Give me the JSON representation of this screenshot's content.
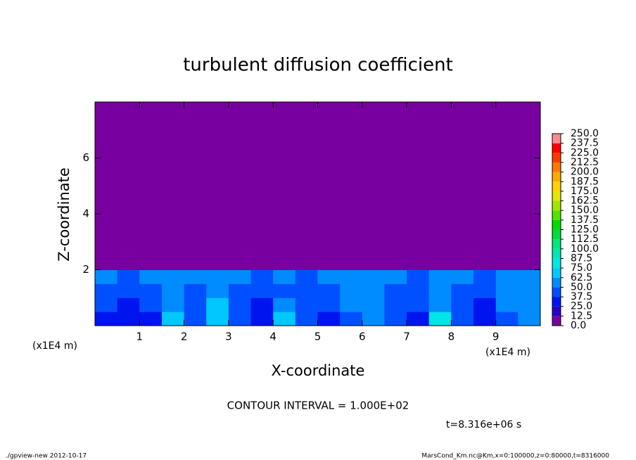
{
  "chart_data": {
    "type": "contour",
    "title": "turbulent diffusion coefficient",
    "xlabel": "X-coordinate",
    "ylabel": "Z-coordinate",
    "x_unit": "(x1E4 m)",
    "xlim": [
      0,
      10
    ],
    "xticks": [
      1,
      2,
      3,
      4,
      5,
      6,
      7,
      8,
      9
    ],
    "ylim": [
      0,
      8
    ],
    "yticks": [
      2,
      4,
      6
    ],
    "x_edges": [
      0,
      0.5,
      1,
      1.5,
      2,
      2.5,
      3,
      3.5,
      4,
      4.5,
      5,
      5.5,
      6,
      6.5,
      7,
      7.5,
      8,
      8.5,
      9,
      9.5,
      10
    ],
    "z_edges": [
      0,
      0.5,
      1,
      1.5,
      2,
      8
    ],
    "values": [
      [
        35,
        30,
        35,
        65,
        40,
        70,
        45,
        30,
        70,
        45,
        35,
        40,
        55,
        40,
        35,
        75,
        40,
        35,
        40,
        60
      ],
      [
        40,
        35,
        40,
        55,
        40,
        65,
        40,
        35,
        50,
        45,
        40,
        60,
        55,
        40,
        40,
        60,
        40,
        35,
        50,
        55
      ],
      [
        45,
        40,
        45,
        50,
        45,
        60,
        45,
        40,
        45,
        40,
        45,
        55,
        60,
        45,
        40,
        50,
        45,
        40,
        55,
        50
      ],
      [
        50,
        45,
        50,
        55,
        50,
        55,
        50,
        45,
        50,
        45,
        50,
        50,
        55,
        50,
        45,
        50,
        50,
        45,
        50,
        50
      ],
      [
        0,
        0,
        0,
        0,
        0,
        0,
        0,
        0,
        0,
        0,
        0,
        0,
        0,
        0,
        0,
        0,
        0,
        0,
        0,
        0
      ]
    ],
    "colorbar": {
      "levels": [
        {
          "value": 0,
          "label": "0.0"
        },
        {
          "value": 12.5,
          "label": "12.5"
        },
        {
          "value": 25,
          "label": "25.0"
        },
        {
          "value": 37.5,
          "label": "37.5"
        },
        {
          "value": 50,
          "label": "50.0"
        },
        {
          "value": 62.5,
          "label": "62.5"
        },
        {
          "value": 75,
          "label": "75.0"
        },
        {
          "value": 87.5,
          "label": "87.5"
        },
        {
          "value": 100,
          "label": "100.0"
        },
        {
          "value": 112.5,
          "label": "112.5"
        },
        {
          "value": 125,
          "label": "125.0"
        },
        {
          "value": 137.5,
          "label": "137.5"
        },
        {
          "value": 150,
          "label": "150.0"
        },
        {
          "value": 162.5,
          "label": "162.5"
        },
        {
          "value": 175,
          "label": "175.0"
        },
        {
          "value": 187.5,
          "label": "187.5"
        },
        {
          "value": 200,
          "label": "200.0"
        },
        {
          "value": 212.5,
          "label": "212.5"
        },
        {
          "value": 225,
          "label": "225.0"
        },
        {
          "value": 237.5,
          "label": "237.5"
        },
        {
          "value": 250,
          "label": "250.0"
        }
      ],
      "colors": [
        "#7800a0",
        "#2800c8",
        "#0014f0",
        "#0050ff",
        "#008cff",
        "#00c8ff",
        "#00e6e6",
        "#00e6b4",
        "#00e678",
        "#00dc3c",
        "#00dc00",
        "#50e600",
        "#a0e600",
        "#e6e600",
        "#ffd200",
        "#ffaa00",
        "#ff7800",
        "#ff3c00",
        "#ff0000",
        "#ff8c8c"
      ]
    },
    "annotations": {
      "contour_interval": "CONTOUR INTERVAL = 1.000E+02",
      "time": "t=8.316e+06 s"
    }
  },
  "footer": {
    "left": "./gpview-new  2012-10-17",
    "right": "MarsCond_Km.nc@Km,x=0:100000,z=0:80000,t=8316000"
  }
}
